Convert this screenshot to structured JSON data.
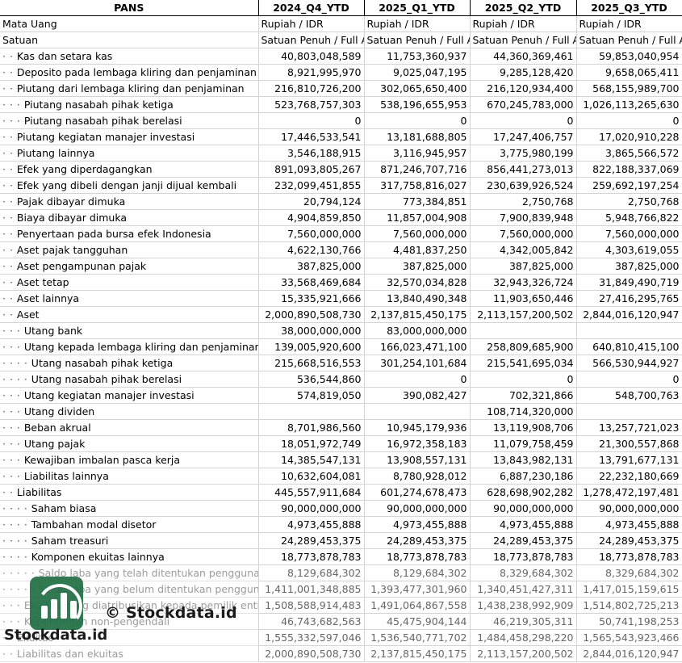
{
  "header": {
    "ticker": "PANS",
    "periods": [
      "2024_Q4_YTD",
      "2025_Q1_YTD",
      "2025_Q2_YTD",
      "2025_Q3_YTD"
    ]
  },
  "meta_rows": [
    {
      "label": "Mata Uang",
      "values": [
        "Rupiah / IDR",
        "Rupiah / IDR",
        "Rupiah / IDR",
        "Rupiah / IDR"
      ]
    },
    {
      "label": "Satuan",
      "values": [
        "Satuan Penuh / Full A",
        "Satuan Penuh / Full A",
        "Satuan Penuh / Full A",
        "Satuan Penuh / Full A"
      ]
    }
  ],
  "rows": [
    {
      "indent": "· · ",
      "label": "Kas dan setara kas",
      "values": [
        "40,803,048,589",
        "11,753,360,937",
        "44,360,369,461",
        "59,853,040,954"
      ]
    },
    {
      "indent": "· · ",
      "label": "Deposito pada lembaga kliring dan penjaminan",
      "values": [
        "8,921,995,970",
        "9,025,047,195",
        "9,285,128,420",
        "9,658,065,411"
      ]
    },
    {
      "indent": "· · ",
      "label": "Piutang dari lembaga kliring dan penjaminan",
      "values": [
        "216,810,726,200",
        "302,065,650,400",
        "216,120,934,400",
        "568,155,989,700"
      ]
    },
    {
      "indent": "· · · ",
      "label": "Piutang nasabah pihak ketiga",
      "values": [
        "523,768,757,303",
        "538,196,655,953",
        "670,245,783,000",
        "1,026,113,265,630"
      ]
    },
    {
      "indent": "· · · ",
      "label": "Piutang nasabah pihak berelasi",
      "values": [
        "0",
        "0",
        "0",
        "0"
      ]
    },
    {
      "indent": "· · ",
      "label": "Piutang kegiatan manajer investasi",
      "values": [
        "17,446,533,541",
        "13,181,688,805",
        "17,247,406,757",
        "17,020,910,228"
      ]
    },
    {
      "indent": "· · ",
      "label": "Piutang lainnya",
      "values": [
        "3,546,188,915",
        "3,116,945,957",
        "3,775,980,199",
        "3,865,566,572"
      ]
    },
    {
      "indent": "· · ",
      "label": "Efek yang diperdagangkan",
      "values": [
        "891,093,805,267",
        "871,246,707,716",
        "856,441,273,013",
        "822,188,337,069"
      ]
    },
    {
      "indent": "· · ",
      "label": "Efek yang dibeli dengan janji dijual kembali",
      "values": [
        "232,099,451,855",
        "317,758,816,027",
        "230,639,926,524",
        "259,692,197,254"
      ]
    },
    {
      "indent": "· · ",
      "label": "Pajak dibayar dimuka",
      "values": [
        "20,794,124",
        "773,384,851",
        "2,750,768",
        "2,750,768"
      ]
    },
    {
      "indent": "· · ",
      "label": "Biaya dibayar dimuka",
      "values": [
        "4,904,859,850",
        "11,857,004,908",
        "7,900,839,948",
        "5,948,766,822"
      ]
    },
    {
      "indent": "· · ",
      "label": "Penyertaan pada bursa efek Indonesia",
      "values": [
        "7,560,000,000",
        "7,560,000,000",
        "7,560,000,000",
        "7,560,000,000"
      ]
    },
    {
      "indent": "· · ",
      "label": "Aset pajak tangguhan",
      "values": [
        "4,622,130,766",
        "4,481,837,250",
        "4,342,005,842",
        "4,303,619,055"
      ]
    },
    {
      "indent": "· · ",
      "label": "Aset pengampunan pajak",
      "values": [
        "387,825,000",
        "387,825,000",
        "387,825,000",
        "387,825,000"
      ]
    },
    {
      "indent": "· · ",
      "label": "Aset tetap",
      "values": [
        "33,568,469,684",
        "32,570,034,828",
        "32,943,326,724",
        "31,849,490,719"
      ]
    },
    {
      "indent": "· · ",
      "label": "Aset lainnya",
      "values": [
        "15,335,921,666",
        "13,840,490,348",
        "11,903,650,446",
        "27,416,295,765"
      ]
    },
    {
      "indent": "· · ",
      "label": "Aset",
      "values": [
        "2,000,890,508,730",
        "2,137,815,450,175",
        "2,113,157,200,502",
        "2,844,016,120,947"
      ]
    },
    {
      "indent": "· · · ",
      "label": "Utang bank",
      "values": [
        "38,000,000,000",
        "83,000,000,000",
        "",
        ""
      ]
    },
    {
      "indent": "· · · ",
      "label": "Utang kepada lembaga kliring dan penjaminan",
      "values": [
        "139,005,920,600",
        "166,023,471,100",
        "258,809,685,900",
        "640,810,415,100"
      ]
    },
    {
      "indent": "· · · · ",
      "label": "Utang nasabah pihak ketiga",
      "values": [
        "215,668,516,553",
        "301,254,101,684",
        "215,541,695,034",
        "566,530,944,927"
      ]
    },
    {
      "indent": "· · · · ",
      "label": "Utang nasabah pihak berelasi",
      "values": [
        "536,544,860",
        "0",
        "0",
        "0"
      ]
    },
    {
      "indent": "· · · ",
      "label": "Utang kegiatan manajer investasi",
      "values": [
        "574,819,050",
        "390,082,427",
        "702,321,866",
        "548,700,763"
      ]
    },
    {
      "indent": "· · · ",
      "label": "Utang dividen",
      "values": [
        "",
        "",
        "108,714,320,000",
        ""
      ]
    },
    {
      "indent": "· · · ",
      "label": "Beban akrual",
      "values": [
        "8,701,986,560",
        "10,945,179,936",
        "13,119,908,706",
        "13,257,721,023"
      ]
    },
    {
      "indent": "· · · ",
      "label": "Utang pajak",
      "values": [
        "18,051,972,749",
        "16,972,358,183",
        "11,079,758,459",
        "21,300,557,868"
      ]
    },
    {
      "indent": "· · · ",
      "label": "Kewajiban imbalan pasca kerja",
      "values": [
        "14,385,547,131",
        "13,908,557,131",
        "13,843,982,131",
        "13,791,677,131"
      ]
    },
    {
      "indent": "· · · ",
      "label": "Liabilitas lainnya",
      "values": [
        "10,632,604,081",
        "8,780,928,012",
        "6,887,230,186",
        "22,232,180,669"
      ]
    },
    {
      "indent": "· · ",
      "label": "Liabilitas",
      "values": [
        "445,557,911,684",
        "601,274,678,473",
        "628,698,902,282",
        "1,278,472,197,481"
      ]
    },
    {
      "indent": "· · · · ",
      "label": "Saham biasa",
      "values": [
        "90,000,000,000",
        "90,000,000,000",
        "90,000,000,000",
        "90,000,000,000"
      ]
    },
    {
      "indent": "· · · · ",
      "label": "Tambahan modal disetor",
      "values": [
        "4,973,455,888",
        "4,973,455,888",
        "4,973,455,888",
        "4,973,455,888"
      ]
    },
    {
      "indent": "· · · · ",
      "label": "Saham treasuri",
      "values": [
        "24,289,453,375",
        "24,289,453,375",
        "24,289,453,375",
        "24,289,453,375"
      ]
    },
    {
      "indent": "· · · · ",
      "label": "Komponen ekuitas lainnya",
      "values": [
        "18,773,878,783",
        "18,773,878,783",
        "18,773,878,783",
        "18,773,878,783"
      ]
    },
    {
      "indent": "· · · · · ",
      "label": "Saldo laba yang telah ditentukan penggunaan",
      "values": [
        "8,129,684,302",
        "8,129,684,302",
        "8,329,684,302",
        "8,329,684,302"
      ]
    },
    {
      "indent": "· · · · · ",
      "label": "Saldo laba yang belum ditentukan penggunaan",
      "values": [
        "1,411,001,348,885",
        "1,393,477,301,960",
        "1,340,451,427,311",
        "1,417,015,159,615"
      ]
    },
    {
      "indent": "· · · ",
      "label": "Ekuitas yang diatribusikan kepada pemilik entit",
      "values": [
        "1,508,588,914,483",
        "1,491,064,867,558",
        "1,438,238,992,909",
        "1,514,802,725,213"
      ]
    },
    {
      "indent": "· · · ",
      "label": "Kepentingan non-pengendali",
      "values": [
        "46,743,682,563",
        "45,475,904,144",
        "46,219,305,311",
        "50,741,198,253"
      ]
    },
    {
      "indent": "· · ",
      "label": "Ekuitas",
      "values": [
        "1,555,332,597,046",
        "1,536,540,771,702",
        "1,484,458,298,220",
        "1,565,543,923,466"
      ]
    },
    {
      "indent": "· · ",
      "label": "Liabilitas dan ekuitas",
      "values": [
        "2,000,890,508,730",
        "2,137,815,450,175",
        "2,113,157,200,502",
        "2,844,016,120,947"
      ]
    }
  ],
  "watermark": {
    "top_text": "© Stockdata.id",
    "bottom_text": "Stockdata.id",
    "logo_icon": "bar-chart-logo-icon",
    "logo_color": "#1f6e43"
  }
}
